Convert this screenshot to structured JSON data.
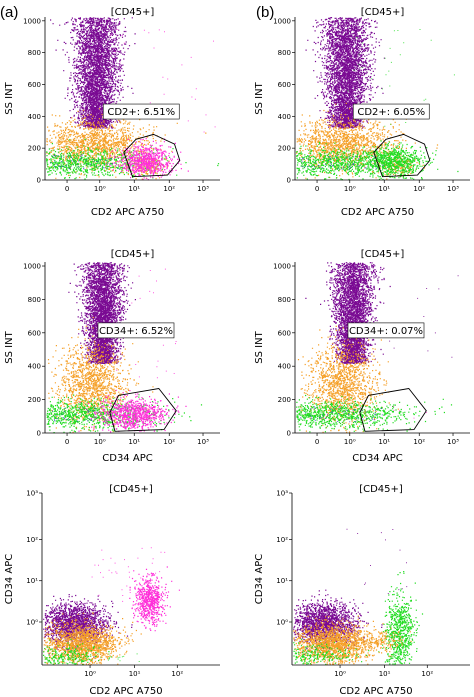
{
  "panel_labels": {
    "a": "(a)",
    "b": "(b)"
  },
  "colors": {
    "purple": "#7a0a93",
    "orange": "#f5a028",
    "green": "#22dd22",
    "magenta": "#ff2ed9",
    "blue": "#3a3ad0"
  },
  "chart_data": [
    {
      "panel": "a",
      "row": 1,
      "type": "scatter",
      "title": "[CD45+]",
      "xlabel": "CD2 APC A750",
      "ylabel": "SS INT",
      "x_scale": "log",
      "y_scale": "linear",
      "x_ticks": [
        "0",
        "10⁰",
        "10¹",
        "10²",
        "10³"
      ],
      "y_ticks": [
        "0",
        "200",
        "400",
        "600",
        "800",
        "1000"
      ],
      "xlim": [
        0,
        1000
      ],
      "ylim": [
        0,
        1024
      ],
      "annotation": "CD2+: 6.51%",
      "populations": [
        {
          "color": "purple",
          "x_center": 0.6,
          "y_center": 700,
          "description": "dense column"
        },
        {
          "color": "orange",
          "x_center": 0.6,
          "y_center": 260
        },
        {
          "color": "green",
          "x_center": 0.3,
          "y_center": 110
        },
        {
          "color": "magenta",
          "x_center": 25,
          "y_center": 140
        }
      ]
    },
    {
      "panel": "b",
      "row": 1,
      "type": "scatter",
      "title": "[CD45+]",
      "xlabel": "CD2 APC A750",
      "ylabel": "SS INT",
      "x_scale": "log",
      "y_scale": "linear",
      "x_ticks": [
        "0",
        "10⁰",
        "10¹",
        "10²",
        "10³"
      ],
      "y_ticks": [
        "0",
        "200",
        "400",
        "600",
        "800",
        "1000"
      ],
      "xlim": [
        0,
        1000
      ],
      "ylim": [
        0,
        1024
      ],
      "annotation": "CD2+: 6.05%",
      "populations": [
        {
          "color": "purple",
          "x_center": 0.6,
          "y_center": 700
        },
        {
          "color": "orange",
          "x_center": 0.6,
          "y_center": 260
        },
        {
          "color": "green",
          "x_center": 0.3,
          "y_center": 110
        },
        {
          "color": "green",
          "x_center": 25,
          "y_center": 140
        }
      ]
    },
    {
      "panel": "a",
      "row": 2,
      "type": "scatter",
      "title": "[CD45+]",
      "xlabel": "CD34 APC",
      "ylabel": "SS INT",
      "x_scale": "log",
      "y_scale": "linear",
      "x_ticks": [
        "0",
        "10⁰",
        "10¹",
        "10²",
        "10³"
      ],
      "y_ticks": [
        "0",
        "200",
        "400",
        "600",
        "800",
        "1000"
      ],
      "xlim": [
        0,
        1000
      ],
      "ylim": [
        0,
        1024
      ],
      "annotation": "CD34+: 6.52%",
      "populations": [
        {
          "color": "purple",
          "x_center": 1.5,
          "y_center": 650
        },
        {
          "color": "orange",
          "x_center": 0.8,
          "y_center": 280
        },
        {
          "color": "green",
          "x_center": 0.3,
          "y_center": 110
        },
        {
          "color": "magenta",
          "x_center": 10,
          "y_center": 110
        }
      ]
    },
    {
      "panel": "b",
      "row": 2,
      "type": "scatter",
      "title": "[CD45+]",
      "xlabel": "CD34 APC",
      "ylabel": "SS INT",
      "x_scale": "log",
      "y_scale": "linear",
      "x_ticks": [
        "0",
        "10⁰",
        "10¹",
        "10²",
        "10³"
      ],
      "y_ticks": [
        "0",
        "200",
        "400",
        "600",
        "800",
        "1000"
      ],
      "xlim": [
        0,
        1000
      ],
      "ylim": [
        0,
        1024
      ],
      "annotation": "CD34+: 0.07%",
      "populations": [
        {
          "color": "purple",
          "x_center": 1.5,
          "y_center": 650
        },
        {
          "color": "orange",
          "x_center": 0.8,
          "y_center": 280
        },
        {
          "color": "green",
          "x_center": 0.3,
          "y_center": 110
        }
      ]
    },
    {
      "panel": "a",
      "row": 3,
      "type": "scatter",
      "title": "[CD45+]",
      "xlabel": "CD2 APC A750",
      "ylabel": "CD34 APC",
      "x_scale": "log",
      "y_scale": "log",
      "x_ticks": [
        "10⁰",
        "10¹",
        "10²"
      ],
      "y_ticks": [
        "10⁰",
        "10¹",
        "10²",
        "10³"
      ],
      "populations": [
        {
          "color": "purple",
          "x_center": 0.6,
          "y_center": 1.3
        },
        {
          "color": "orange",
          "x_center": 0.9,
          "y_center": 0.8
        },
        {
          "color": "magenta",
          "x_center": 20,
          "y_center": 4
        },
        {
          "color": "green",
          "x_center": 0.3,
          "y_center": 0.4
        }
      ]
    },
    {
      "panel": "b",
      "row": 3,
      "type": "scatter",
      "title": "[CD45+]",
      "xlabel": "CD2 APC A750",
      "ylabel": "CD34 APC",
      "x_scale": "log",
      "y_scale": "log",
      "x_ticks": [
        "10⁰",
        "10¹",
        "10²"
      ],
      "y_ticks": [
        "10⁰",
        "10¹",
        "10²",
        "10³"
      ],
      "populations": [
        {
          "color": "purple",
          "x_center": 0.6,
          "y_center": 1.3
        },
        {
          "color": "orange",
          "x_center": 0.9,
          "y_center": 0.8
        },
        {
          "color": "green",
          "x_center": 20,
          "y_center": 0.7
        }
      ]
    }
  ]
}
